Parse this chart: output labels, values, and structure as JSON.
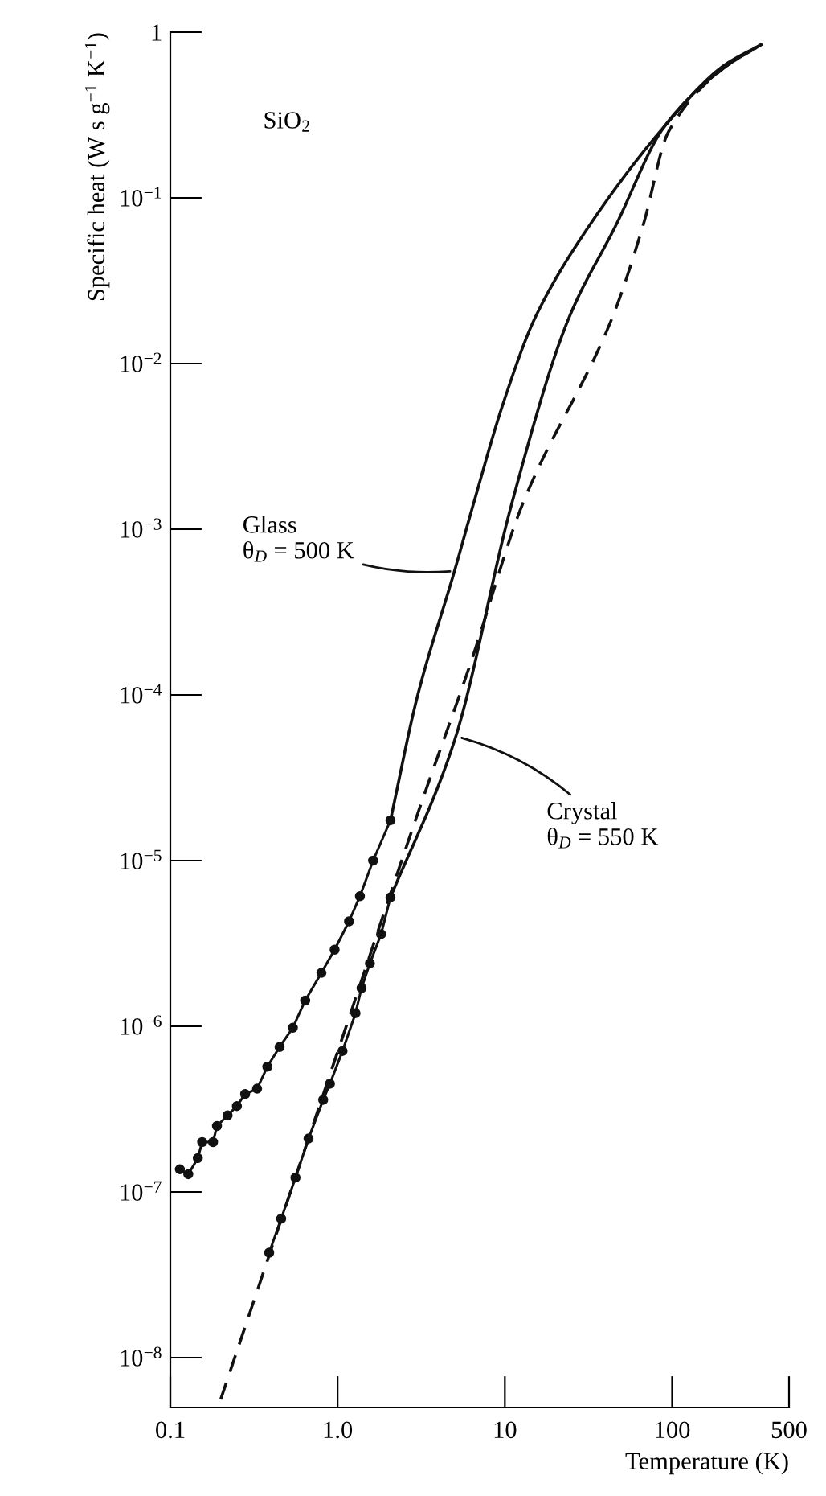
{
  "chart_data": {
    "type": "line",
    "xlabel": "Temperature (K)",
    "ylabel": "Specific heat (W s g$^{−1}$ K$^{−1}$)",
    "log": "xy",
    "xlim": [
      0.1,
      500
    ],
    "xticks": [
      0.1,
      {
        "value": 1,
        "label": "1.0"
      },
      10,
      100,
      500
    ],
    "ylim": [
      5e-09,
      1
    ],
    "yticks": [
      1,
      {
        "value": 0.1,
        "label": "10$^{−1}$"
      },
      {
        "value": 0.01,
        "label": "10$^{−2}$"
      },
      {
        "value": 0.001,
        "label": "10$^{−3}$"
      },
      {
        "value": 0.0001,
        "label": "10$^{−4}$"
      },
      {
        "value": 1e-05,
        "label": "10$^{−5}$"
      },
      {
        "value": 1e-06,
        "label": "10$^{−6}$"
      },
      {
        "value": 1e-07,
        "label": "10$^{−7}$"
      },
      {
        "value": 1e-08,
        "label": "10$^{−8}$"
      }
    ],
    "grid": false,
    "legend": false,
    "series": [
      {
        "type": "line",
        "color": "#111111",
        "line_style": "solid",
        "marker": "none",
        "x": [
          2.07,
          3.0,
          5.0,
          6.5,
          9.8,
          15.2,
          32,
          90,
          200,
          340
        ],
        "values": [
          1.75e-05,
          9.8e-05,
          0.00056,
          0.00143,
          0.0058,
          0.019,
          0.068,
          0.27,
          0.62,
          0.84
        ]
      },
      {
        "type": "line",
        "color": "#111111",
        "line_style": "solid",
        "marker": "circle",
        "x": [
          2.07,
          1.63,
          1.36,
          1.17,
          0.96,
          0.8,
          0.64,
          0.54,
          0.45,
          0.38,
          0.33,
          0.28,
          0.25,
          0.22,
          0.19,
          0.18,
          0.155,
          0.146,
          0.128,
          0.114
        ],
        "values": [
          1.75e-05,
          1e-05,
          6.1e-06,
          4.3e-06,
          2.9e-06,
          2.1e-06,
          1.43e-06,
          9.8e-07,
          7.5e-07,
          5.7e-07,
          4.2e-07,
          3.9e-07,
          3.3e-07,
          2.9e-07,
          2.5e-07,
          2e-07,
          2e-07,
          1.6e-07,
          1.28e-07,
          1.37e-07
        ]
      },
      {
        "type": "line",
        "color": "#111111",
        "line_style": "solid",
        "marker": "none",
        "x": [
          2.07,
          5.0,
          11,
          23.7,
          46,
          90,
          200,
          340
        ],
        "values": [
          6e-06,
          5.3e-05,
          0.00143,
          0.018,
          0.068,
          0.27,
          0.6,
          0.84
        ]
      },
      {
        "type": "line",
        "color": "#111111",
        "line_style": "solid",
        "marker": "circle",
        "x": [
          2.07,
          1.82,
          1.56,
          1.39,
          1.28,
          1.07,
          0.9,
          0.82,
          0.67,
          0.56,
          0.46,
          0.39
        ],
        "values": [
          6e-06,
          3.6e-06,
          2.4e-06,
          1.7e-06,
          1.2e-06,
          7.1e-07,
          4.5e-07,
          3.6e-07,
          2.1e-07,
          1.22e-07,
          6.9e-08,
          4.3e-08
        ]
      },
      {
        "type": "line",
        "color": "#111111",
        "line_style": "dashed",
        "marker": "none",
        "x": [
          0.2,
          1.0,
          3.0,
          6.3,
          12.8,
          43,
          67,
          95,
          200,
          340
        ],
        "values": [
          5.6e-09,
          7e-07,
          1.9e-05,
          0.00016,
          0.00143,
          0.018,
          0.068,
          0.25,
          0.6,
          0.84
        ]
      }
    ],
    "annotations": [
      "SiO$_{2}$",
      {
        "text": "Glass\nθ$_{D}$ = 500 K",
        "x": 5.0,
        "y": 0.00056
      },
      {
        "text": "Crystal\nθ$_{D}$ = 550 K",
        "x": 5.2,
        "y": 5.6e-05
      }
    ]
  }
}
